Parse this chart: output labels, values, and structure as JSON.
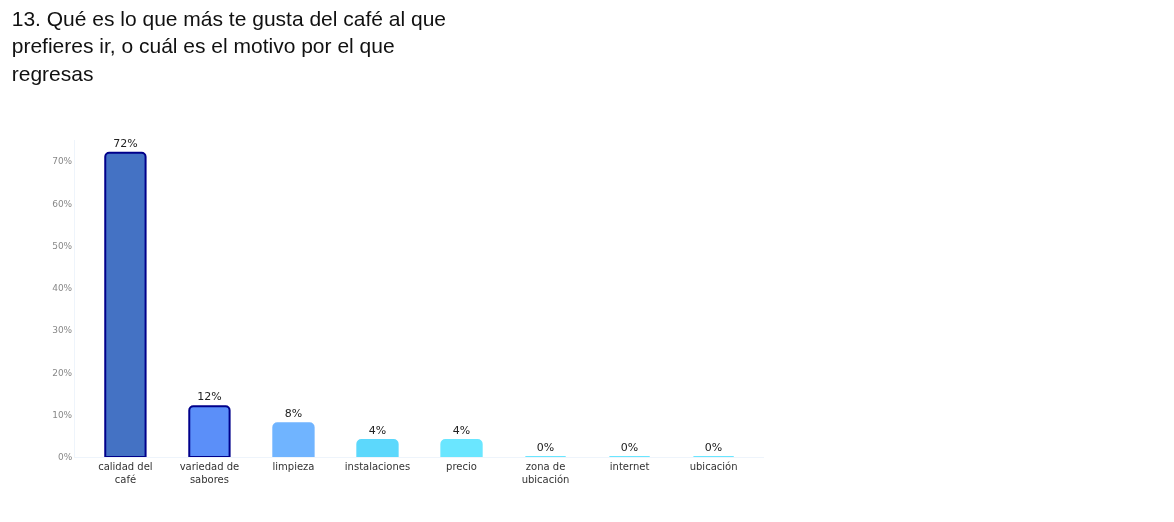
{
  "chart_data": {
    "type": "bar",
    "title": "13. Qué es lo que más te gusta del café al que prefieres ir, o cuál es el motivo por el que regresas",
    "categories": [
      "calidad del café",
      "variedad de sabores",
      "limpieza",
      "instalaciones",
      "precio",
      "zona de ubicación",
      "internet",
      "ubicación"
    ],
    "values": [
      72,
      12,
      8,
      4,
      4,
      0,
      0,
      0
    ],
    "colors": [
      "#4472c4",
      "#5b8ff9",
      "#70b4ff",
      "#5cd8fc",
      "#6ae6ff",
      "#6ae6ff",
      "#6ae6ff",
      "#6ae6ff"
    ],
    "value_labels": [
      "72%",
      "12%",
      "8%",
      "4%",
      "4%",
      "0%",
      "0%",
      "0%"
    ],
    "ylim": [
      0,
      75
    ],
    "yticks": [
      {
        "value": 0,
        "label": "0%"
      },
      {
        "value": 10,
        "label": "10%"
      },
      {
        "value": 20,
        "label": "20%"
      },
      {
        "value": 30,
        "label": "30%"
      },
      {
        "value": 40,
        "label": "40%"
      },
      {
        "value": 50,
        "label": "50%"
      },
      {
        "value": 60,
        "label": "60%"
      },
      {
        "value": 70,
        "label": "70%"
      }
    ]
  }
}
